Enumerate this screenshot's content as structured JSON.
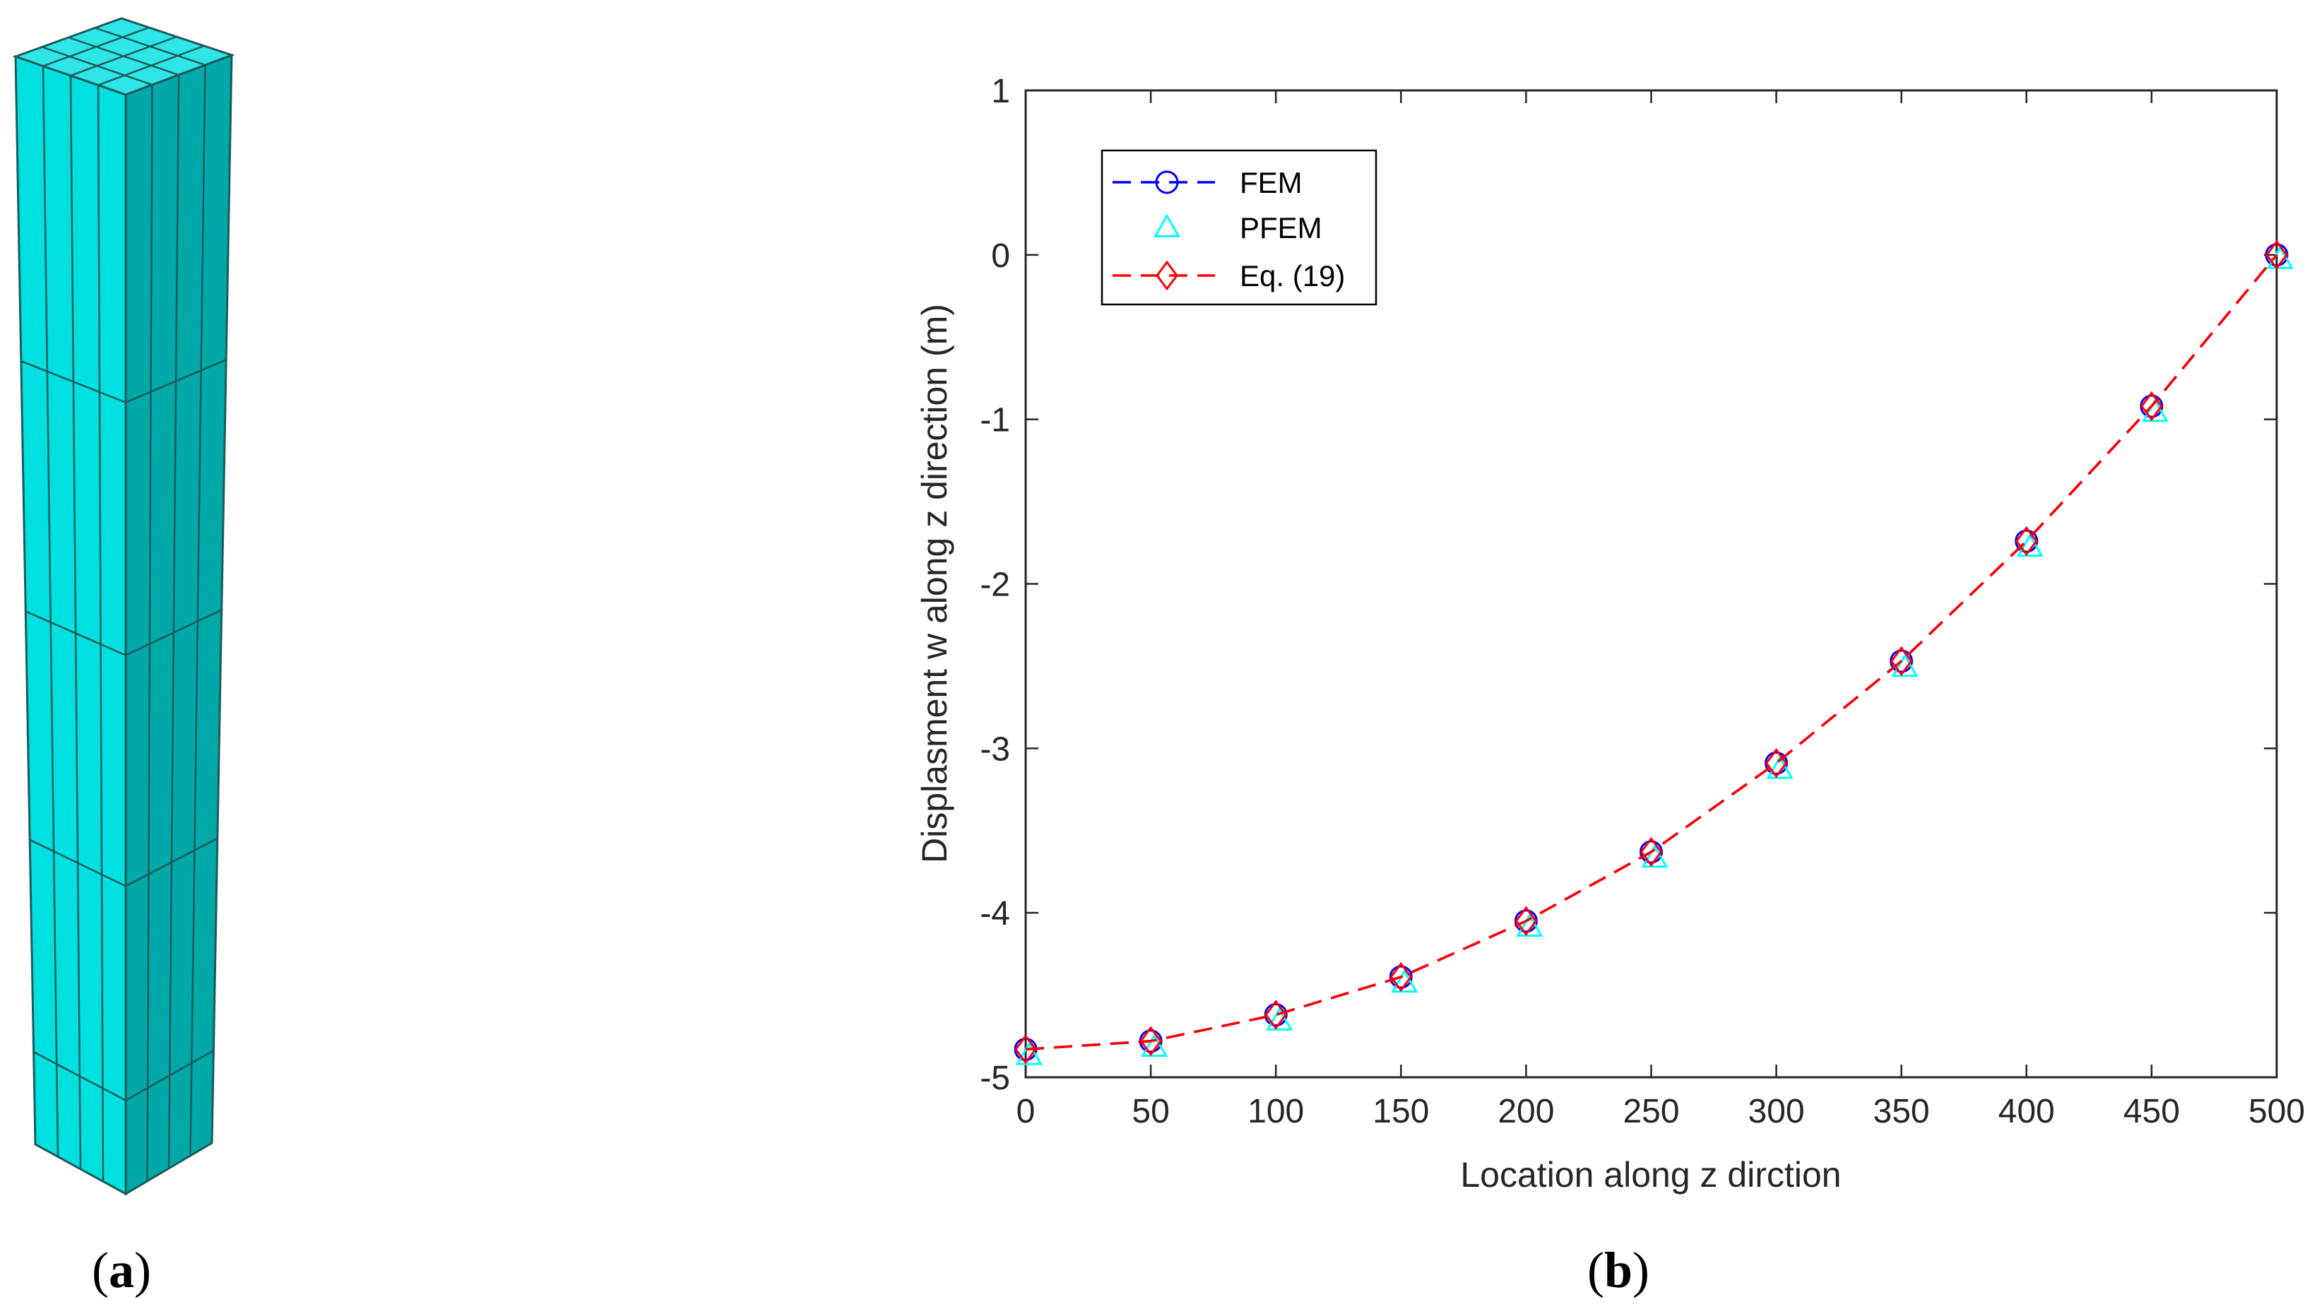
{
  "panels": {
    "a": {
      "label_open": "(",
      "label_letter": "a",
      "label_close": ")"
    },
    "b": {
      "label_open": "(",
      "label_letter": "b",
      "label_close": ")"
    }
  },
  "model": {
    "face_top": "#2ee6e6",
    "face_front": "#00e0e0",
    "face_side": "#00a8a8",
    "edge": "#1e5a5a"
  },
  "chart_data": {
    "type": "line",
    "xlabel": "Location along z dirction",
    "ylabel": "Displasment w along z direction (m)",
    "xlim": [
      0,
      500
    ],
    "ylim": [
      -5,
      1
    ],
    "xticks": [
      0,
      50,
      100,
      150,
      200,
      250,
      300,
      350,
      400,
      450,
      500
    ],
    "yticks": [
      1,
      0,
      -1,
      -2,
      -3,
      -4,
      -5
    ],
    "grid": false,
    "legend_position": "top-left",
    "x": [
      0,
      50,
      100,
      150,
      200,
      250,
      300,
      350,
      400,
      450,
      500
    ],
    "series": [
      {
        "name": "FEM",
        "color": "#0000ff",
        "marker": "circle",
        "line": "dashed",
        "values": [
          -4.83,
          -4.78,
          -4.62,
          -4.39,
          -4.05,
          -3.63,
          -3.09,
          -2.47,
          -1.74,
          -0.92,
          0.0
        ]
      },
      {
        "name": "PFEM",
        "color": "#00ffff",
        "marker": "triangle",
        "line": "none",
        "values": [
          -4.84,
          -4.79,
          -4.63,
          -4.4,
          -4.06,
          -3.64,
          -3.1,
          -2.48,
          -1.75,
          -0.93,
          0.0
        ]
      },
      {
        "name": "Eq. (19)",
        "color": "#ff0000",
        "marker": "diamond",
        "line": "dashed",
        "values": [
          -4.83,
          -4.78,
          -4.62,
          -4.39,
          -4.05,
          -3.63,
          -3.09,
          -2.47,
          -1.74,
          -0.92,
          0.0
        ]
      }
    ]
  }
}
